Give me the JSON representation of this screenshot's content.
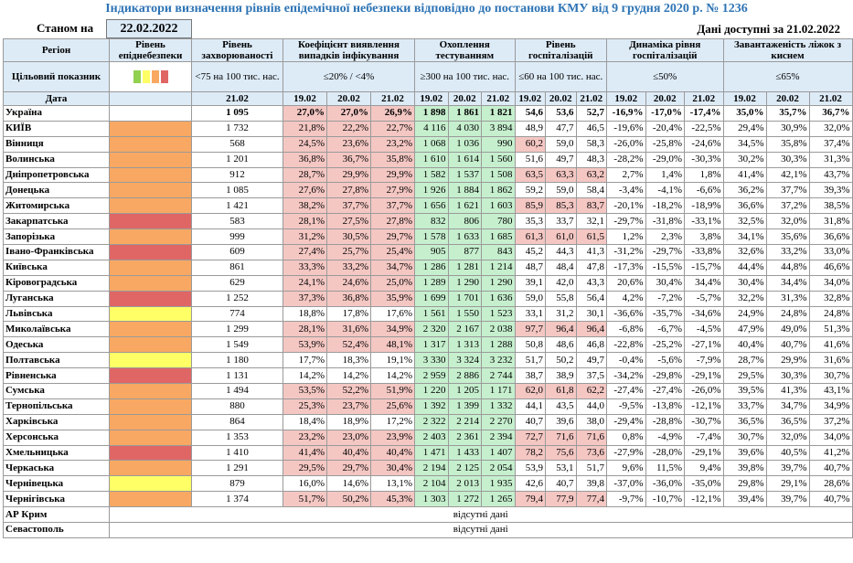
{
  "header": {
    "title": "Індикатори визначення рівнів епідемічної небезпеки відповідно до постанови КМУ від 9 грудня 2020 р. № 1236",
    "as_of_label": "Станом на",
    "as_of_date": "22.02.2022",
    "data_available": "Дані доступні за 21.02.2022"
  },
  "table": {
    "target_label": "Цільовий показник",
    "date_label": "Дата",
    "columns": [
      {
        "title": "Регіон"
      },
      {
        "title": "Рівень епіднебезпеки"
      },
      {
        "title": "Рівень захворюваності",
        "target": "<75 на 100 тис. нас.",
        "dates": [
          "21.02"
        ]
      },
      {
        "title": "Коефіцієнт виявлення випадків інфікування",
        "target": "≤20% / <4%",
        "dates": [
          "19.02",
          "20.02",
          "21.02"
        ]
      },
      {
        "title": "Охоплення тестуванням",
        "target": "≥300 на 100 тис. нас.",
        "dates": [
          "19.02",
          "20.02",
          "21.02"
        ]
      },
      {
        "title": "Рівень госпіталізацій",
        "target": "≤60 на 100 тис. нас.",
        "dates": [
          "19.02",
          "20.02",
          "21.02"
        ]
      },
      {
        "title": "Динаміка рівня госпіталізацій",
        "target": "≤50%",
        "dates": [
          "19.02",
          "20.02",
          "21.02"
        ]
      },
      {
        "title": "Завантаженість ліжок з киснем",
        "target": "≤65%",
        "dates": [
          "19.02",
          "20.02",
          "21.02"
        ]
      }
    ],
    "rows": [
      {
        "region": "Україна",
        "level": "#ffffff",
        "incidence": "1 095",
        "coef": [
          "27,0%",
          "27,0%",
          "26,9%"
        ],
        "coef_bg": "#f4c7c3",
        "tests": [
          "1 898",
          "1 861",
          "1 821"
        ],
        "tests_bg": "#c6efce",
        "hosp": [
          "54,6",
          "53,6",
          "52,7"
        ],
        "hosp_bg": [
          "#ffffff",
          "#ffffff",
          "#ffffff"
        ],
        "dyn": [
          "-16,9%",
          "-17,0%",
          "-17,4%"
        ],
        "beds": [
          "35,0%",
          "35,7%",
          "36,7%"
        ]
      },
      {
        "region": "КИЇВ",
        "level": "#f8a862",
        "incidence": "1 732",
        "coef": [
          "21,8%",
          "22,2%",
          "22,7%"
        ],
        "coef_bg": "#f4c7c3",
        "tests": [
          "4 116",
          "4 030",
          "3 894"
        ],
        "tests_bg": "#c6efce",
        "hosp": [
          "48,9",
          "47,7",
          "46,5"
        ],
        "hosp_bg": [
          "#ffffff",
          "#ffffff",
          "#ffffff"
        ],
        "dyn": [
          "-19,6%",
          "-20,4%",
          "-22,5%"
        ],
        "beds": [
          "29,4%",
          "30,9%",
          "32,0%"
        ]
      },
      {
        "region": "Вінниця",
        "level": "#f8a862",
        "incidence": "568",
        "coef": [
          "24,5%",
          "23,6%",
          "23,2%"
        ],
        "coef_bg": "#f4c7c3",
        "tests": [
          "1 068",
          "1 036",
          "990"
        ],
        "tests_bg": "#c6efce",
        "hosp": [
          "60,2",
          "59,0",
          "58,3"
        ],
        "hosp_bg": [
          "#f4c7c3",
          "#ffffff",
          "#ffffff"
        ],
        "dyn": [
          "-26,0%",
          "-25,8%",
          "-24,6%"
        ],
        "beds": [
          "34,5%",
          "35,8%",
          "37,4%"
        ]
      },
      {
        "region": "Волинська",
        "level": "#f8a862",
        "incidence": "1 201",
        "coef": [
          "36,8%",
          "36,7%",
          "35,8%"
        ],
        "coef_bg": "#f4c7c3",
        "tests": [
          "1 610",
          "1 614",
          "1 560"
        ],
        "tests_bg": "#c6efce",
        "hosp": [
          "51,6",
          "49,7",
          "48,3"
        ],
        "hosp_bg": [
          "#ffffff",
          "#ffffff",
          "#ffffff"
        ],
        "dyn": [
          "-28,2%",
          "-29,0%",
          "-30,3%"
        ],
        "beds": [
          "30,2%",
          "30,3%",
          "31,3%"
        ]
      },
      {
        "region": "Дніпропетровська",
        "level": "#f8a862",
        "incidence": "912",
        "coef": [
          "28,7%",
          "29,9%",
          "29,9%"
        ],
        "coef_bg": "#f4c7c3",
        "tests": [
          "1 582",
          "1 537",
          "1 508"
        ],
        "tests_bg": "#c6efce",
        "hosp": [
          "63,5",
          "63,3",
          "63,2"
        ],
        "hosp_bg": [
          "#f4c7c3",
          "#f4c7c3",
          "#f4c7c3"
        ],
        "dyn": [
          "2,7%",
          "1,4%",
          "1,8%"
        ],
        "beds": [
          "41,4%",
          "42,1%",
          "43,7%"
        ]
      },
      {
        "region": "Донецька",
        "level": "#f8a862",
        "incidence": "1 085",
        "coef": [
          "27,6%",
          "27,8%",
          "27,9%"
        ],
        "coef_bg": "#f4c7c3",
        "tests": [
          "1 926",
          "1 884",
          "1 862"
        ],
        "tests_bg": "#c6efce",
        "hosp": [
          "59,2",
          "59,0",
          "58,4"
        ],
        "hosp_bg": [
          "#ffffff",
          "#ffffff",
          "#ffffff"
        ],
        "dyn": [
          "-3,4%",
          "-4,1%",
          "-6,6%"
        ],
        "beds": [
          "36,2%",
          "37,7%",
          "39,3%"
        ]
      },
      {
        "region": "Житомирська",
        "level": "#f8a862",
        "incidence": "1 421",
        "coef": [
          "38,2%",
          "37,7%",
          "37,7%"
        ],
        "coef_bg": "#f4c7c3",
        "tests": [
          "1 656",
          "1 621",
          "1 603"
        ],
        "tests_bg": "#c6efce",
        "hosp": [
          "85,9",
          "85,3",
          "83,7"
        ],
        "hosp_bg": [
          "#f4c7c3",
          "#f4c7c3",
          "#f4c7c3"
        ],
        "dyn": [
          "-20,1%",
          "-18,2%",
          "-18,9%"
        ],
        "beds": [
          "36,6%",
          "37,2%",
          "38,5%"
        ]
      },
      {
        "region": "Закарпатська",
        "level": "#e06666",
        "incidence": "583",
        "coef": [
          "28,1%",
          "27,5%",
          "27,8%"
        ],
        "coef_bg": "#f4c7c3",
        "tests": [
          "832",
          "806",
          "780"
        ],
        "tests_bg": "#c6efce",
        "hosp": [
          "35,3",
          "33,7",
          "32,1"
        ],
        "hosp_bg": [
          "#ffffff",
          "#ffffff",
          "#ffffff"
        ],
        "dyn": [
          "-29,7%",
          "-31,8%",
          "-33,1%"
        ],
        "beds": [
          "32,5%",
          "32,0%",
          "31,8%"
        ]
      },
      {
        "region": "Запорізька",
        "level": "#f8a862",
        "incidence": "999",
        "coef": [
          "31,2%",
          "30,5%",
          "29,7%"
        ],
        "coef_bg": "#f4c7c3",
        "tests": [
          "1 578",
          "1 633",
          "1 685"
        ],
        "tests_bg": "#c6efce",
        "hosp": [
          "61,3",
          "61,0",
          "61,5"
        ],
        "hosp_bg": [
          "#f4c7c3",
          "#f4c7c3",
          "#f4c7c3"
        ],
        "dyn": [
          "1,2%",
          "2,3%",
          "3,8%"
        ],
        "beds": [
          "34,1%",
          "35,6%",
          "36,6%"
        ]
      },
      {
        "region": "Івано-Франківська",
        "level": "#e06666",
        "incidence": "609",
        "coef": [
          "27,4%",
          "25,7%",
          "25,4%"
        ],
        "coef_bg": "#f4c7c3",
        "tests": [
          "905",
          "877",
          "843"
        ],
        "tests_bg": "#c6efce",
        "hosp": [
          "45,2",
          "44,3",
          "41,3"
        ],
        "hosp_bg": [
          "#ffffff",
          "#ffffff",
          "#ffffff"
        ],
        "dyn": [
          "-31,2%",
          "-29,7%",
          "-33,8%"
        ],
        "beds": [
          "32,6%",
          "33,2%",
          "33,0%"
        ]
      },
      {
        "region": "Київська",
        "level": "#f8a862",
        "incidence": "861",
        "coef": [
          "33,3%",
          "33,2%",
          "34,7%"
        ],
        "coef_bg": "#f4c7c3",
        "tests": [
          "1 286",
          "1 281",
          "1 214"
        ],
        "tests_bg": "#c6efce",
        "hosp": [
          "48,7",
          "48,4",
          "47,8"
        ],
        "hosp_bg": [
          "#ffffff",
          "#ffffff",
          "#ffffff"
        ],
        "dyn": [
          "-17,3%",
          "-15,5%",
          "-15,7%"
        ],
        "beds": [
          "44,4%",
          "44,8%",
          "46,6%"
        ]
      },
      {
        "region": "Кіровоградська",
        "level": "#f8a862",
        "incidence": "629",
        "coef": [
          "24,1%",
          "24,6%",
          "25,0%"
        ],
        "coef_bg": "#f4c7c3",
        "tests": [
          "1 289",
          "1 290",
          "1 290"
        ],
        "tests_bg": "#c6efce",
        "hosp": [
          "39,1",
          "42,0",
          "43,3"
        ],
        "hosp_bg": [
          "#ffffff",
          "#ffffff",
          "#ffffff"
        ],
        "dyn": [
          "20,6%",
          "30,4%",
          "34,4%"
        ],
        "beds": [
          "30,4%",
          "34,4%",
          "34,0%"
        ]
      },
      {
        "region": "Луганська",
        "level": "#e06666",
        "incidence": "1 252",
        "coef": [
          "37,3%",
          "36,8%",
          "35,9%"
        ],
        "coef_bg": "#f4c7c3",
        "tests": [
          "1 699",
          "1 701",
          "1 636"
        ],
        "tests_bg": "#c6efce",
        "hosp": [
          "59,0",
          "55,8",
          "56,4"
        ],
        "hosp_bg": [
          "#ffffff",
          "#ffffff",
          "#ffffff"
        ],
        "dyn": [
          "4,2%",
          "-7,2%",
          "-5,7%"
        ],
        "beds": [
          "32,2%",
          "31,3%",
          "32,8%"
        ]
      },
      {
        "region": "Львівська",
        "level": "#ffff66",
        "incidence": "774",
        "coef": [
          "18,8%",
          "17,8%",
          "17,6%"
        ],
        "coef_bg": "#ffffff",
        "tests": [
          "1 561",
          "1 550",
          "1 523"
        ],
        "tests_bg": "#c6efce",
        "hosp": [
          "33,1",
          "31,2",
          "30,1"
        ],
        "hosp_bg": [
          "#ffffff",
          "#ffffff",
          "#ffffff"
        ],
        "dyn": [
          "-36,6%",
          "-35,7%",
          "-34,6%"
        ],
        "beds": [
          "24,9%",
          "24,8%",
          "24,8%"
        ]
      },
      {
        "region": "Миколаївська",
        "level": "#f8a862",
        "incidence": "1 299",
        "coef": [
          "28,1%",
          "31,6%",
          "34,9%"
        ],
        "coef_bg": "#f4c7c3",
        "tests": [
          "2 320",
          "2 167",
          "2 038"
        ],
        "tests_bg": "#c6efce",
        "hosp": [
          "97,7",
          "96,4",
          "96,4"
        ],
        "hosp_bg": [
          "#f4c7c3",
          "#f4c7c3",
          "#f4c7c3"
        ],
        "dyn": [
          "-6,8%",
          "-6,7%",
          "-4,5%"
        ],
        "beds": [
          "47,9%",
          "49,0%",
          "51,3%"
        ]
      },
      {
        "region": "Одеська",
        "level": "#f8a862",
        "incidence": "1 549",
        "coef": [
          "53,9%",
          "52,4%",
          "48,1%"
        ],
        "coef_bg": "#f4c7c3",
        "tests": [
          "1 317",
          "1 313",
          "1 288"
        ],
        "tests_bg": "#c6efce",
        "hosp": [
          "50,8",
          "48,6",
          "46,8"
        ],
        "hosp_bg": [
          "#ffffff",
          "#ffffff",
          "#ffffff"
        ],
        "dyn": [
          "-22,8%",
          "-25,2%",
          "-27,1%"
        ],
        "beds": [
          "40,4%",
          "40,7%",
          "41,6%"
        ]
      },
      {
        "region": "Полтавська",
        "level": "#ffff66",
        "incidence": "1 180",
        "coef": [
          "17,7%",
          "18,3%",
          "19,1%"
        ],
        "coef_bg": "#ffffff",
        "tests": [
          "3 330",
          "3 324",
          "3 232"
        ],
        "tests_bg": "#c6efce",
        "hosp": [
          "51,7",
          "50,2",
          "49,7"
        ],
        "hosp_bg": [
          "#ffffff",
          "#ffffff",
          "#ffffff"
        ],
        "dyn": [
          "-0,4%",
          "-5,6%",
          "-7,9%"
        ],
        "beds": [
          "28,7%",
          "29,9%",
          "31,6%"
        ]
      },
      {
        "region": "Рівненська",
        "level": "#e06666",
        "incidence": "1 131",
        "coef": [
          "14,2%",
          "14,2%",
          "14,2%"
        ],
        "coef_bg": "#ffffff",
        "tests": [
          "2 959",
          "2 886",
          "2 744"
        ],
        "tests_bg": "#c6efce",
        "hosp": [
          "38,7",
          "38,9",
          "37,5"
        ],
        "hosp_bg": [
          "#ffffff",
          "#ffffff",
          "#ffffff"
        ],
        "dyn": [
          "-34,2%",
          "-29,8%",
          "-29,1%"
        ],
        "beds": [
          "29,5%",
          "30,3%",
          "30,7%"
        ]
      },
      {
        "region": "Сумська",
        "level": "#f8a862",
        "incidence": "1 494",
        "coef": [
          "53,5%",
          "52,2%",
          "51,9%"
        ],
        "coef_bg": "#f4c7c3",
        "tests": [
          "1 220",
          "1 205",
          "1 171"
        ],
        "tests_bg": "#c6efce",
        "hosp": [
          "62,0",
          "61,8",
          "62,2"
        ],
        "hosp_bg": [
          "#f4c7c3",
          "#f4c7c3",
          "#f4c7c3"
        ],
        "dyn": [
          "-27,4%",
          "-27,4%",
          "-26,0%"
        ],
        "beds": [
          "39,5%",
          "41,3%",
          "43,1%"
        ]
      },
      {
        "region": "Тернопільська",
        "level": "#f8a862",
        "incidence": "880",
        "coef": [
          "25,3%",
          "23,7%",
          "25,6%"
        ],
        "coef_bg": "#f4c7c3",
        "tests": [
          "1 392",
          "1 399",
          "1 332"
        ],
        "tests_bg": "#c6efce",
        "hosp": [
          "44,1",
          "43,5",
          "44,0"
        ],
        "hosp_bg": [
          "#ffffff",
          "#ffffff",
          "#ffffff"
        ],
        "dyn": [
          "-9,5%",
          "-13,8%",
          "-12,1%"
        ],
        "beds": [
          "33,7%",
          "34,7%",
          "34,9%"
        ]
      },
      {
        "region": "Харківська",
        "level": "#f8a862",
        "incidence": "864",
        "coef": [
          "18,4%",
          "18,9%",
          "17,2%"
        ],
        "coef_bg": "#ffffff",
        "tests": [
          "2 322",
          "2 214",
          "2 270"
        ],
        "tests_bg": "#c6efce",
        "hosp": [
          "40,7",
          "39,6",
          "38,0"
        ],
        "hosp_bg": [
          "#ffffff",
          "#ffffff",
          "#ffffff"
        ],
        "dyn": [
          "-29,4%",
          "-28,8%",
          "-30,7%"
        ],
        "beds": [
          "36,5%",
          "36,5%",
          "37,2%"
        ]
      },
      {
        "region": "Херсонська",
        "level": "#f8a862",
        "incidence": "1 353",
        "coef": [
          "23,2%",
          "23,0%",
          "23,9%"
        ],
        "coef_bg": "#f4c7c3",
        "tests": [
          "2 403",
          "2 361",
          "2 394"
        ],
        "tests_bg": "#c6efce",
        "hosp": [
          "72,7",
          "71,6",
          "71,6"
        ],
        "hosp_bg": [
          "#f4c7c3",
          "#f4c7c3",
          "#f4c7c3"
        ],
        "dyn": [
          "0,8%",
          "-4,9%",
          "-7,4%"
        ],
        "beds": [
          "30,7%",
          "32,0%",
          "34,0%"
        ]
      },
      {
        "region": "Хмельницька",
        "level": "#e06666",
        "incidence": "1 410",
        "coef": [
          "41,4%",
          "40,4%",
          "40,4%"
        ],
        "coef_bg": "#f4c7c3",
        "tests": [
          "1 471",
          "1 433",
          "1 407"
        ],
        "tests_bg": "#c6efce",
        "hosp": [
          "78,2",
          "75,6",
          "73,6"
        ],
        "hosp_bg": [
          "#f4c7c3",
          "#f4c7c3",
          "#f4c7c3"
        ],
        "dyn": [
          "-27,9%",
          "-28,0%",
          "-29,1%"
        ],
        "beds": [
          "39,6%",
          "40,5%",
          "41,2%"
        ]
      },
      {
        "region": "Черкаська",
        "level": "#f8a862",
        "incidence": "1 291",
        "coef": [
          "29,5%",
          "29,7%",
          "30,4%"
        ],
        "coef_bg": "#f4c7c3",
        "tests": [
          "2 194",
          "2 125",
          "2 054"
        ],
        "tests_bg": "#c6efce",
        "hosp": [
          "53,9",
          "53,1",
          "51,7"
        ],
        "hosp_bg": [
          "#ffffff",
          "#ffffff",
          "#ffffff"
        ],
        "dyn": [
          "9,6%",
          "11,5%",
          "9,4%"
        ],
        "beds": [
          "39,8%",
          "39,7%",
          "40,7%"
        ]
      },
      {
        "region": "Чернівецька",
        "level": "#ffff66",
        "incidence": "879",
        "coef": [
          "16,0%",
          "14,6%",
          "13,1%"
        ],
        "coef_bg": "#ffffff",
        "tests": [
          "2 104",
          "2 013",
          "1 935"
        ],
        "tests_bg": "#c6efce",
        "hosp": [
          "42,6",
          "40,7",
          "39,8"
        ],
        "hosp_bg": [
          "#ffffff",
          "#ffffff",
          "#ffffff"
        ],
        "dyn": [
          "-37,0%",
          "-36,0%",
          "-35,0%"
        ],
        "beds": [
          "29,8%",
          "29,1%",
          "28,6%"
        ]
      },
      {
        "region": "Чернігівська",
        "level": "#f8a862",
        "incidence": "1 374",
        "coef": [
          "51,7%",
          "50,2%",
          "45,3%"
        ],
        "coef_bg": "#f4c7c3",
        "tests": [
          "1 303",
          "1 272",
          "1 265"
        ],
        "tests_bg": "#c6efce",
        "hosp": [
          "79,4",
          "77,9",
          "77,4"
        ],
        "hosp_bg": [
          "#f4c7c3",
          "#f4c7c3",
          "#f4c7c3"
        ],
        "dyn": [
          "-9,7%",
          "-10,7%",
          "-12,1%"
        ],
        "beds": [
          "39,4%",
          "39,7%",
          "40,7%"
        ]
      },
      {
        "region": "АР Крим",
        "note": "відсутні дані"
      },
      {
        "region": "Севастополь",
        "note": "відсутні дані"
      }
    ]
  }
}
